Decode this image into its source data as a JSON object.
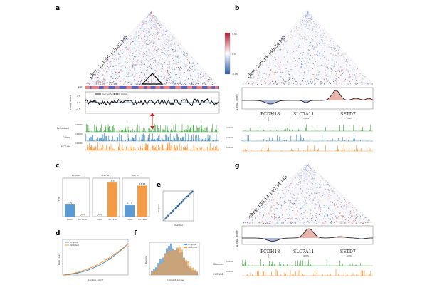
{
  "panels": {
    "a": "a",
    "b": "b",
    "c": "c",
    "d": "d",
    "e": "e",
    "f": "f",
    "g": "g"
  },
  "coords": {
    "a": "chr1: 121.46-155.02 Mb",
    "b": "chr4: 136.14-140.34 Mb",
    "g": "chr4: 136.14-140.34 Mb"
  },
  "colorbar": {
    "max": "0.08",
    "mid": "0.0",
    "min": "-0.08",
    "colors": [
      "#2a59a8",
      "#ffffff",
      "#b2182b"
    ]
  },
  "panel_a": {
    "track_label_ep": "E/P",
    "legend": {
      "perturbed": "perturbed",
      "colon": "colon"
    },
    "ylabel": "comp. score",
    "yticks": [
      "2.5",
      "0.0",
      "-2.5"
    ],
    "tracks": [
      {
        "label": "Perturbed",
        "color": "#2ca02c",
        "tick": "10000"
      },
      {
        "label": "Colon",
        "color": "#1f77b4",
        "tick": "10000"
      },
      {
        "label": "HCT116",
        "color": "#ff7f0e",
        "tick": "10000"
      }
    ]
  },
  "panel_b": {
    "ylabel": "Δ insul. score",
    "genes": [
      "PCDH18",
      "SLC7A11",
      "SETD7"
    ],
    "ticks": [
      "10000",
      "10000",
      "10000"
    ]
  },
  "panel_g": {
    "ylabel": "Δ insul. score",
    "genes": [
      "PCDH18",
      "SLC7A11",
      "SETD7"
    ],
    "tracks": [
      {
        "label": "Silenced",
        "color": "#2ca02c",
        "tick": "10000"
      },
      {
        "label": "HCT116",
        "color": "#ff7f0e",
        "tick": "10000"
      }
    ]
  },
  "chart_data": [
    {
      "type": "bar",
      "title": "PCDH18",
      "ylabel": "TPM",
      "categories": [
        "Colon",
        "HCT116"
      ],
      "values": [
        6.56,
        0.07
      ],
      "value_labels": [
        "6.56",
        "0.07"
      ],
      "colors": [
        "#5b9bd5",
        "#f39c45"
      ]
    },
    {
      "type": "bar",
      "title": "SLC7A11",
      "categories": [
        "Colon",
        "HCT116"
      ],
      "values": [
        0.01,
        18.62
      ],
      "value_labels": [
        "0.01",
        "18.62"
      ],
      "colors": [
        "#5b9bd5",
        "#f39c45"
      ]
    },
    {
      "type": "bar",
      "title": "SETD7",
      "categories": [
        "Colon",
        "HCT116"
      ],
      "values": [
        6.17,
        16.93
      ],
      "value_labels": [
        "6.17",
        "16.93"
      ],
      "colors": [
        "#5b9bd5",
        "#f39c45"
      ]
    },
    {
      "type": "line",
      "xlabel": "p-value cutoff",
      "ylabel": "Loop count",
      "series": [
        {
          "name": "Original",
          "color": "#1f77b4"
        },
        {
          "name": "Modified",
          "color": "#ff7f0e"
        }
      ]
    },
    {
      "type": "scatter",
      "xlabel": "Modified",
      "ylabel": "Original"
    },
    {
      "type": "histogram",
      "xlabel": "Compart. scores",
      "ylabel": "Density",
      "series": [
        {
          "name": "Original",
          "color": "#5b9bd5"
        },
        {
          "name": "Modified",
          "color": "#f39c45"
        }
      ]
    }
  ]
}
